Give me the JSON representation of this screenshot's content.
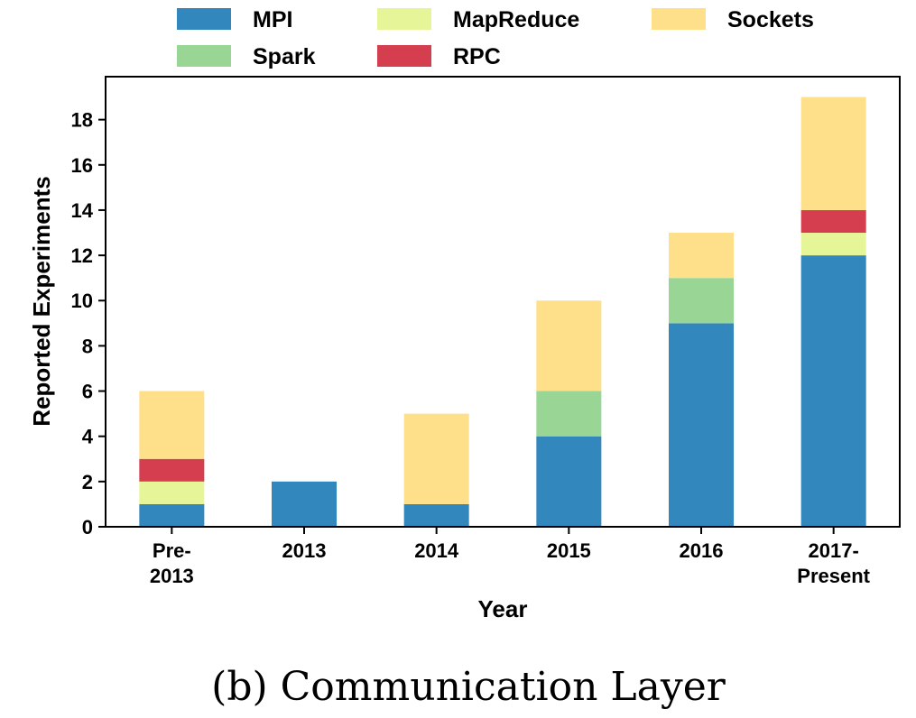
{
  "chart_data": {
    "type": "bar",
    "stacked": true,
    "caption": "(b) Communication Layer",
    "xlabel": "Year",
    "ylabel": "Reported Experiments",
    "ylim": [
      0,
      19.9
    ],
    "yticks": [
      0,
      2,
      4,
      6,
      8,
      10,
      12,
      14,
      16,
      18
    ],
    "categories": [
      [
        "Pre-",
        "2013"
      ],
      [
        "2013"
      ],
      [
        "2014"
      ],
      [
        "2015"
      ],
      [
        "2016"
      ],
      [
        "2017-",
        "Present"
      ]
    ],
    "series": [
      {
        "name": "MPI",
        "color": "#3287bd",
        "values": [
          1,
          2,
          1,
          4,
          9,
          12
        ]
      },
      {
        "name": "MapReduce",
        "color": "#e6f598",
        "values": [
          1,
          0,
          0,
          0,
          0,
          1
        ]
      },
      {
        "name": "RPC",
        "color": "#d53e4f",
        "values": [
          1,
          0,
          0,
          0,
          0,
          1
        ]
      },
      {
        "name": "Spark",
        "color": "#99d594",
        "values": [
          0,
          0,
          0,
          2,
          2,
          0
        ]
      },
      {
        "name": "Sockets",
        "color": "#fee08b",
        "values": [
          3,
          0,
          4,
          4,
          2,
          5
        ]
      }
    ],
    "legend": {
      "placement": "top",
      "order": [
        "MPI",
        "MapReduce",
        "Sockets",
        "Spark",
        "RPC"
      ]
    },
    "grid": false
  }
}
